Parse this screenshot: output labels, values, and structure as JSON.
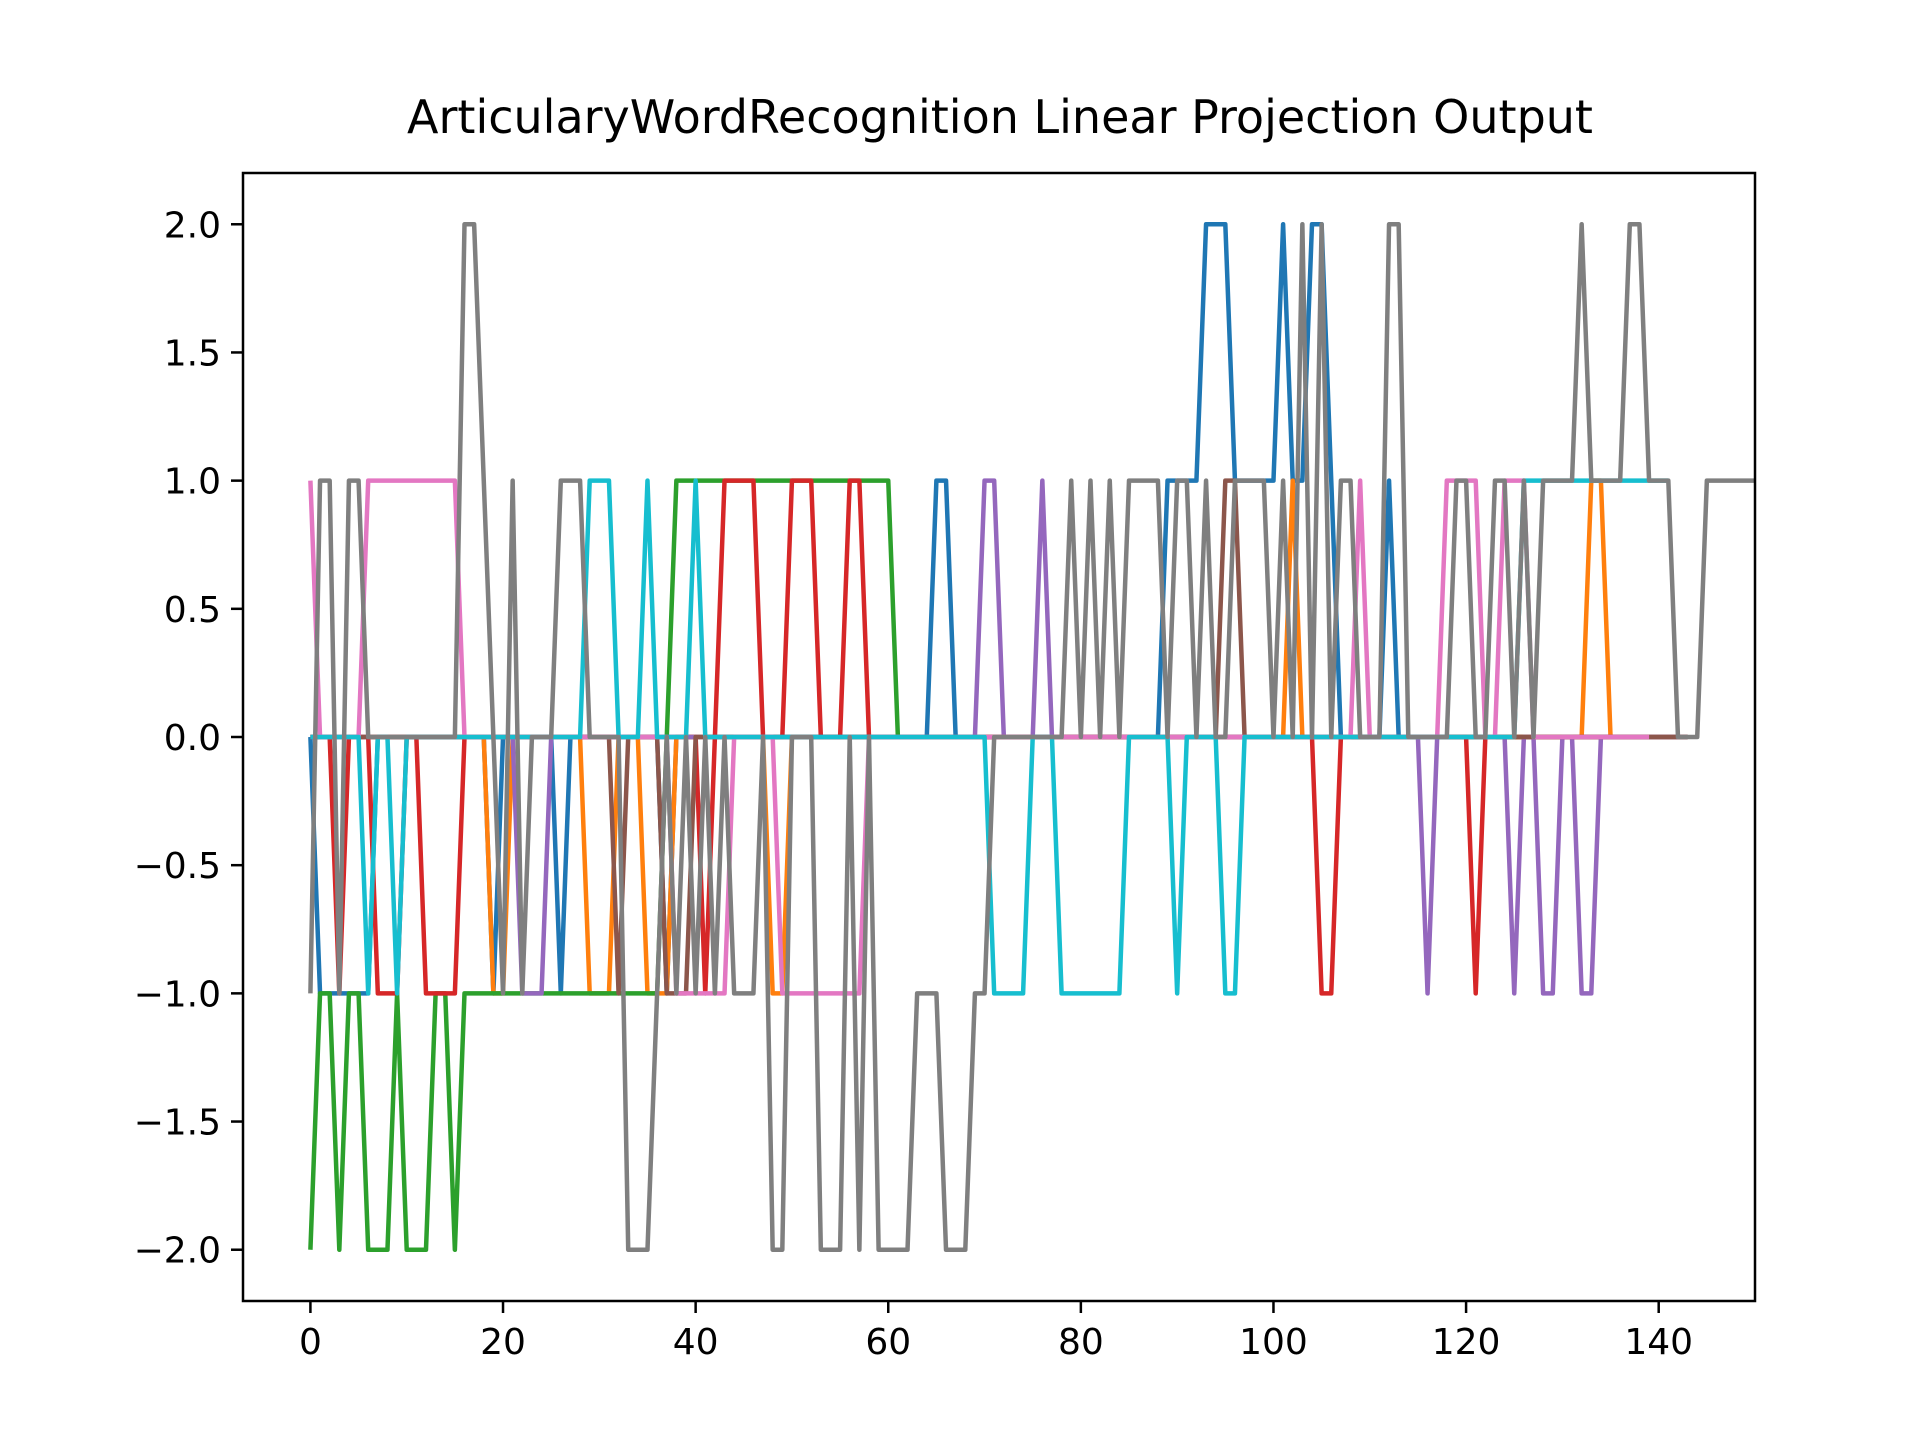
{
  "chart_data": {
    "type": "line",
    "title": "ArticularyWordRecognition Linear Projection Output",
    "xlabel": "",
    "ylabel": "",
    "xlim": [
      -7,
      150
    ],
    "ylim": [
      -2.2,
      2.2
    ],
    "x_ticks": [
      0,
      20,
      40,
      60,
      80,
      100,
      120,
      140
    ],
    "x_tick_labels": [
      "0",
      "20",
      "40",
      "60",
      "80",
      "100",
      "120",
      "140"
    ],
    "y_ticks": [
      -2.0,
      -1.5,
      -1.0,
      -0.5,
      0.0,
      0.5,
      1.0,
      1.5,
      2.0
    ],
    "y_tick_labels": [
      "−2.0",
      "−1.5",
      "−1.0",
      "−0.5",
      "0.0",
      "0.5",
      "1.0",
      "1.5",
      "2.0"
    ],
    "grid": false,
    "x_start": 0,
    "series": [
      {
        "color": "#1f77b4",
        "values": [
          0,
          -1,
          -1,
          -1,
          -1,
          -1,
          -1,
          0,
          0,
          0,
          0,
          0,
          0,
          0,
          0,
          0,
          0,
          0,
          0,
          -1,
          0,
          0,
          0,
          0,
          0,
          0,
          -1,
          0,
          0,
          0,
          0,
          0,
          0,
          0,
          0,
          0,
          0,
          -1,
          0,
          0,
          0,
          0,
          0,
          0,
          0,
          0,
          0,
          0,
          0,
          0,
          0,
          0,
          0,
          0,
          0,
          0,
          0,
          0,
          0,
          0,
          0,
          0,
          0,
          0,
          0,
          1,
          1,
          0,
          0,
          0,
          0,
          0,
          0,
          0,
          0,
          0,
          0,
          0,
          0,
          0,
          0,
          0,
          0,
          0,
          0,
          0,
          0,
          0,
          0,
          1,
          1,
          1,
          1,
          2,
          2,
          2,
          1,
          1,
          1,
          1,
          1,
          2,
          1,
          1,
          2,
          2,
          1,
          0,
          0,
          0,
          0,
          0,
          1,
          0,
          0,
          0,
          0,
          0,
          0,
          0,
          0,
          0,
          0,
          0,
          0,
          0,
          0,
          0,
          0,
          0,
          0,
          0,
          0,
          0,
          0,
          0,
          0,
          0,
          0,
          0,
          0,
          0,
          0
        ]
      },
      {
        "color": "#ff7f0e",
        "values": [
          0,
          0,
          0,
          0,
          0,
          0,
          0,
          0,
          0,
          0,
          0,
          0,
          0,
          0,
          0,
          0,
          0,
          0,
          0,
          -1,
          -1,
          0,
          0,
          0,
          0,
          0,
          0,
          0,
          0,
          -1,
          -1,
          -1,
          0,
          0,
          0,
          -1,
          -1,
          -1,
          0,
          0,
          0,
          0,
          0,
          0,
          0,
          0,
          0,
          0,
          -1,
          -1,
          0,
          0,
          0,
          0,
          0,
          0,
          0,
          0,
          0,
          0,
          0,
          0,
          0,
          0,
          0,
          0,
          0,
          0,
          0,
          0,
          0,
          0,
          0,
          0,
          0,
          0,
          0,
          0,
          0,
          0,
          0,
          0,
          0,
          0,
          0,
          0,
          0,
          0,
          0,
          0,
          0,
          0,
          0,
          0,
          0,
          0,
          0,
          0,
          0,
          0,
          0,
          0,
          1,
          0,
          0,
          0,
          0,
          0,
          0,
          0,
          0,
          0,
          0,
          0,
          0,
          0,
          0,
          0,
          0,
          0,
          0,
          0,
          0,
          0,
          0,
          0,
          0,
          0,
          0,
          0,
          0,
          0,
          0,
          1,
          1,
          0,
          0,
          0,
          0,
          0,
          0,
          0,
          0,
          0
        ]
      },
      {
        "color": "#2ca02c",
        "values": [
          -2,
          -1,
          -1,
          -2,
          -1,
          -1,
          -2,
          -2,
          -2,
          -1,
          -2,
          -2,
          -2,
          -1,
          -1,
          -2,
          -1,
          -1,
          -1,
          -1,
          -1,
          -1,
          -1,
          -1,
          -1,
          -1,
          -1,
          -1,
          -1,
          -1,
          -1,
          -1,
          -1,
          -1,
          -1,
          -1,
          -1,
          0,
          1,
          1,
          1,
          1,
          1,
          1,
          1,
          1,
          1,
          1,
          1,
          1,
          1,
          1,
          1,
          1,
          1,
          1,
          1,
          1,
          1,
          1,
          1,
          0,
          0,
          0,
          0,
          0,
          0,
          0,
          0,
          0,
          0,
          0,
          0,
          0,
          0,
          0,
          0,
          0,
          0,
          0,
          0,
          0,
          0,
          0,
          0,
          0,
          0,
          0,
          0,
          0,
          0,
          0,
          0,
          0,
          0,
          0,
          0,
          0,
          0,
          0,
          0,
          0,
          0,
          0,
          0,
          0,
          0,
          0,
          0,
          0,
          0,
          0,
          0,
          0,
          0,
          0,
          0,
          0,
          0,
          0,
          0,
          0,
          0,
          0,
          0,
          0,
          0,
          0,
          0,
          0,
          0,
          0,
          0,
          0,
          0,
          0,
          0,
          0,
          0,
          0,
          0,
          0,
          0,
          0
        ]
      },
      {
        "color": "#d62728",
        "values": [
          0,
          0,
          0,
          -1,
          0,
          0,
          0,
          -1,
          -1,
          -1,
          0,
          0,
          -1,
          -1,
          -1,
          -1,
          0,
          0,
          0,
          0,
          0,
          0,
          0,
          0,
          0,
          0,
          0,
          0,
          0,
          0,
          0,
          0,
          0,
          0,
          0,
          0,
          0,
          0,
          0,
          0,
          0,
          -1,
          0,
          1,
          1,
          1,
          1,
          0,
          0,
          0,
          1,
          1,
          1,
          0,
          0,
          0,
          1,
          1,
          0,
          0,
          0,
          0,
          0,
          0,
          0,
          0,
          0,
          0,
          0,
          0,
          0,
          0,
          0,
          0,
          0,
          0,
          0,
          0,
          0,
          0,
          0,
          0,
          0,
          0,
          0,
          0,
          0,
          0,
          0,
          0,
          0,
          0,
          0,
          0,
          0,
          0,
          0,
          0,
          0,
          0,
          0,
          0,
          0,
          0,
          0,
          -1,
          -1,
          0,
          0,
          0,
          0,
          0,
          0,
          0,
          0,
          0,
          0,
          0,
          0,
          0,
          0,
          -1,
          0,
          0,
          0,
          0,
          0,
          0,
          0,
          0,
          0,
          0,
          0,
          0,
          0,
          0,
          0,
          0,
          0,
          0,
          0,
          0,
          0,
          0
        ]
      },
      {
        "color": "#9467bd",
        "values": [
          0,
          0,
          0,
          0,
          0,
          0,
          0,
          0,
          0,
          0,
          0,
          0,
          0,
          0,
          0,
          0,
          0,
          0,
          0,
          0,
          0,
          0,
          -1,
          -1,
          -1,
          0,
          0,
          0,
          0,
          0,
          0,
          0,
          0,
          0,
          0,
          0,
          0,
          0,
          0,
          0,
          0,
          0,
          0,
          0,
          0,
          0,
          0,
          0,
          0,
          0,
          0,
          0,
          0,
          0,
          0,
          0,
          0,
          0,
          0,
          0,
          0,
          0,
          0,
          0,
          0,
          0,
          0,
          0,
          0,
          0,
          1,
          1,
          0,
          0,
          0,
          0,
          1,
          0,
          0,
          0,
          0,
          0,
          0,
          0,
          0,
          0,
          0,
          0,
          0,
          0,
          0,
          0,
          0,
          0,
          0,
          0,
          0,
          0,
          0,
          0,
          0,
          0,
          0,
          0,
          0,
          0,
          0,
          0,
          0,
          0,
          0,
          0,
          0,
          0,
          0,
          0,
          -1,
          0,
          0,
          0,
          0,
          0,
          0,
          0,
          0,
          -1,
          0,
          0,
          -1,
          -1,
          0,
          0,
          -1,
          -1,
          0,
          0,
          0,
          0,
          0,
          0,
          0,
          0,
          0,
          0
        ]
      },
      {
        "color": "#8c564b",
        "values": [
          0,
          0,
          0,
          0,
          0,
          0,
          0,
          0,
          0,
          0,
          0,
          0,
          0,
          0,
          0,
          0,
          0,
          0,
          0,
          0,
          0,
          0,
          0,
          0,
          0,
          0,
          0,
          0,
          0,
          0,
          0,
          0,
          -1,
          0,
          0,
          0,
          0,
          -1,
          -1,
          -1,
          0,
          0,
          0,
          0,
          0,
          0,
          0,
          0,
          0,
          0,
          0,
          0,
          0,
          0,
          0,
          0,
          0,
          0,
          0,
          0,
          0,
          0,
          0,
          0,
          0,
          0,
          0,
          0,
          0,
          0,
          0,
          0,
          0,
          0,
          0,
          0,
          0,
          0,
          0,
          0,
          0,
          0,
          0,
          0,
          0,
          0,
          0,
          0,
          0,
          0,
          0,
          0,
          0,
          0,
          0,
          1,
          1,
          0,
          0,
          0,
          0,
          0,
          0,
          0,
          0,
          0,
          0,
          0,
          0,
          0,
          0,
          0,
          0,
          0,
          0,
          0,
          0,
          0,
          0,
          0,
          0,
          0,
          0,
          0,
          0,
          0,
          0,
          0,
          0,
          0,
          0,
          0,
          0,
          0,
          0,
          0,
          0,
          0,
          0,
          0,
          0,
          0,
          0,
          0
        ]
      },
      {
        "color": "#e377c2",
        "values": [
          1,
          0,
          0,
          0,
          0,
          0,
          1,
          1,
          1,
          1,
          1,
          1,
          1,
          1,
          1,
          1,
          0,
          0,
          0,
          0,
          0,
          0,
          0,
          0,
          0,
          0,
          0,
          0,
          0,
          0,
          0,
          0,
          0,
          0,
          0,
          0,
          0,
          0,
          -1,
          -1,
          -1,
          -1,
          -1,
          -1,
          0,
          0,
          0,
          0,
          0,
          -1,
          -1,
          -1,
          -1,
          -1,
          -1,
          -1,
          -1,
          -1,
          0,
          0,
          0,
          0,
          0,
          0,
          0,
          0,
          0,
          0,
          0,
          0,
          0,
          0,
          0,
          0,
          0,
          0,
          0,
          0,
          0,
          0,
          0,
          0,
          0,
          0,
          0,
          0,
          0,
          0,
          0,
          0,
          0,
          0,
          0,
          0,
          0,
          0,
          0,
          0,
          0,
          0,
          0,
          0,
          0,
          0,
          0,
          0,
          0,
          0,
          0,
          1,
          0,
          0,
          0,
          0,
          0,
          0,
          0,
          0,
          1,
          1,
          1,
          1,
          0,
          0,
          1,
          1,
          1,
          0,
          0,
          0,
          0,
          0,
          0,
          0,
          0,
          0,
          0,
          0,
          0,
          0
        ]
      },
      {
        "color": "#17becf",
        "values": [
          0,
          0,
          0,
          0,
          0,
          0,
          -1,
          0,
          0,
          -1,
          0,
          0,
          0,
          0,
          0,
          0,
          0,
          0,
          0,
          0,
          0,
          0,
          0,
          0,
          0,
          0,
          0,
          0,
          0,
          1,
          1,
          1,
          0,
          0,
          0,
          1,
          0,
          0,
          0,
          0,
          1,
          0,
          0,
          0,
          0,
          0,
          0,
          0,
          0,
          0,
          0,
          0,
          0,
          0,
          0,
          0,
          0,
          0,
          0,
          0,
          0,
          0,
          0,
          0,
          0,
          0,
          0,
          0,
          0,
          0,
          0,
          -1,
          -1,
          -1,
          -1,
          0,
          0,
          0,
          -1,
          -1,
          -1,
          -1,
          -1,
          -1,
          -1,
          0,
          0,
          0,
          0,
          0,
          -1,
          0,
          0,
          0,
          0,
          -1,
          -1,
          0,
          0,
          0,
          0,
          0,
          0,
          0,
          0,
          0,
          0,
          0,
          0,
          0,
          0,
          0,
          0,
          0,
          0,
          0,
          0,
          0,
          0,
          0,
          0,
          0,
          0,
          0,
          0,
          0,
          1,
          1,
          1,
          1,
          1,
          1,
          1,
          1,
          1,
          1,
          1,
          1,
          1,
          1,
          1,
          1
        ]
      },
      {
        "color": "#7f7f7f",
        "values": [
          -1,
          1,
          1,
          -1,
          1,
          1,
          0,
          0,
          0,
          0,
          0,
          0,
          0,
          0,
          0,
          0,
          2,
          2,
          1,
          0,
          -1,
          1,
          -1,
          0,
          0,
          0,
          1,
          1,
          1,
          0,
          0,
          0,
          0,
          -2,
          -2,
          -2,
          -1,
          0,
          -1,
          0,
          -1,
          0,
          -1,
          0,
          -1,
          -1,
          -1,
          0,
          -2,
          -2,
          0,
          0,
          0,
          -2,
          -2,
          -2,
          0,
          -2,
          0,
          -2,
          -2,
          -2,
          -2,
          -1,
          -1,
          -1,
          -2,
          -2,
          -2,
          -1,
          -1,
          0,
          0,
          0,
          0,
          0,
          0,
          0,
          0,
          1,
          0,
          1,
          0,
          1,
          0,
          1,
          1,
          1,
          1,
          0,
          1,
          1,
          0,
          1,
          0,
          0,
          1,
          1,
          1,
          1,
          0,
          1,
          0,
          2,
          0,
          2,
          0,
          1,
          1,
          0,
          0,
          0,
          2,
          2,
          0,
          0,
          0,
          0,
          0,
          1,
          1,
          0,
          0,
          1,
          1,
          0,
          1,
          0,
          1,
          1,
          1,
          1,
          2,
          1,
          1,
          1,
          1,
          2,
          2,
          1,
          1,
          1,
          0,
          0,
          0,
          1,
          1,
          1,
          1,
          1,
          1
        ]
      }
    ]
  }
}
